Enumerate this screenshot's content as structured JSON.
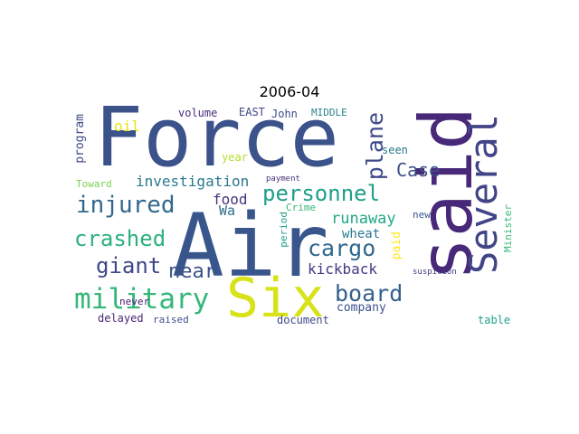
{
  "title": "2006-04",
  "chart_data": {
    "type": "wordcloud",
    "words": [
      {
        "text": "Force",
        "color": "#3b528b",
        "vertical": false
      },
      {
        "text": "Air",
        "color": "#39568c",
        "vertical": false
      },
      {
        "text": "said",
        "color": "#482878",
        "vertical": true
      },
      {
        "text": "Six",
        "color": "#d8e219",
        "vertical": false
      },
      {
        "text": "Several",
        "color": "#414487",
        "vertical": true
      },
      {
        "text": "military",
        "color": "#35b779",
        "vertical": false
      },
      {
        "text": "personnel",
        "color": "#1f9e89",
        "vertical": false
      },
      {
        "text": "injured",
        "color": "#31688e",
        "vertical": false
      },
      {
        "text": "crashed",
        "color": "#2cb17e",
        "vertical": false
      },
      {
        "text": "cargo",
        "color": "#31688e",
        "vertical": false
      },
      {
        "text": "board",
        "color": "#355f8d",
        "vertical": false
      },
      {
        "text": "plane",
        "color": "#3e4a89",
        "vertical": true
      },
      {
        "text": "giant",
        "color": "#3f4788",
        "vertical": false
      },
      {
        "text": "near",
        "color": "#3b528b",
        "vertical": false
      },
      {
        "text": "Case",
        "color": "#3d4e8a",
        "vertical": false
      },
      {
        "text": "runaway",
        "color": "#22a884",
        "vertical": false
      },
      {
        "text": "investigation",
        "color": "#2a788e",
        "vertical": false
      },
      {
        "text": "kickback",
        "color": "#443983",
        "vertical": false
      },
      {
        "text": "food",
        "color": "#46337e",
        "vertical": false
      },
      {
        "text": "Wa",
        "color": "#2e6e8e",
        "vertical": false
      },
      {
        "text": "wheat",
        "color": "#2a788e",
        "vertical": false
      },
      {
        "text": "company",
        "color": "#3b528b",
        "vertical": false
      },
      {
        "text": "program",
        "color": "#3e4989",
        "vertical": true
      },
      {
        "text": "oil",
        "color": "#e5e419",
        "vertical": false
      },
      {
        "text": "volume",
        "color": "#472d7b",
        "vertical": false
      },
      {
        "text": "EAST",
        "color": "#414487",
        "vertical": false
      },
      {
        "text": "John",
        "color": "#3e4a89",
        "vertical": false
      },
      {
        "text": "MIDDLE",
        "color": "#26828e",
        "vertical": false
      },
      {
        "text": "year",
        "color": "#b5de2b",
        "vertical": false
      },
      {
        "text": "seen",
        "color": "#2a788e",
        "vertical": false
      },
      {
        "text": "Toward",
        "color": "#7ad151",
        "vertical": false
      },
      {
        "text": "payment",
        "color": "#46327e",
        "vertical": false
      },
      {
        "text": "Crime",
        "color": "#35b779",
        "vertical": false
      },
      {
        "text": "new",
        "color": "#38598c",
        "vertical": false
      },
      {
        "text": "period",
        "color": "#1fa187",
        "vertical": true
      },
      {
        "text": "paid",
        "color": "#fde725",
        "vertical": true
      },
      {
        "text": "Minister",
        "color": "#38b977",
        "vertical": true
      },
      {
        "text": "suspicion",
        "color": "#443a83",
        "vertical": false
      },
      {
        "text": "never",
        "color": "#482173",
        "vertical": false
      },
      {
        "text": "delayed",
        "color": "#482677",
        "vertical": false
      },
      {
        "text": "raised",
        "color": "#3b528b",
        "vertical": false
      },
      {
        "text": "document",
        "color": "#3e4a89",
        "vertical": false
      },
      {
        "text": "table",
        "color": "#20a386",
        "vertical": false
      }
    ]
  }
}
